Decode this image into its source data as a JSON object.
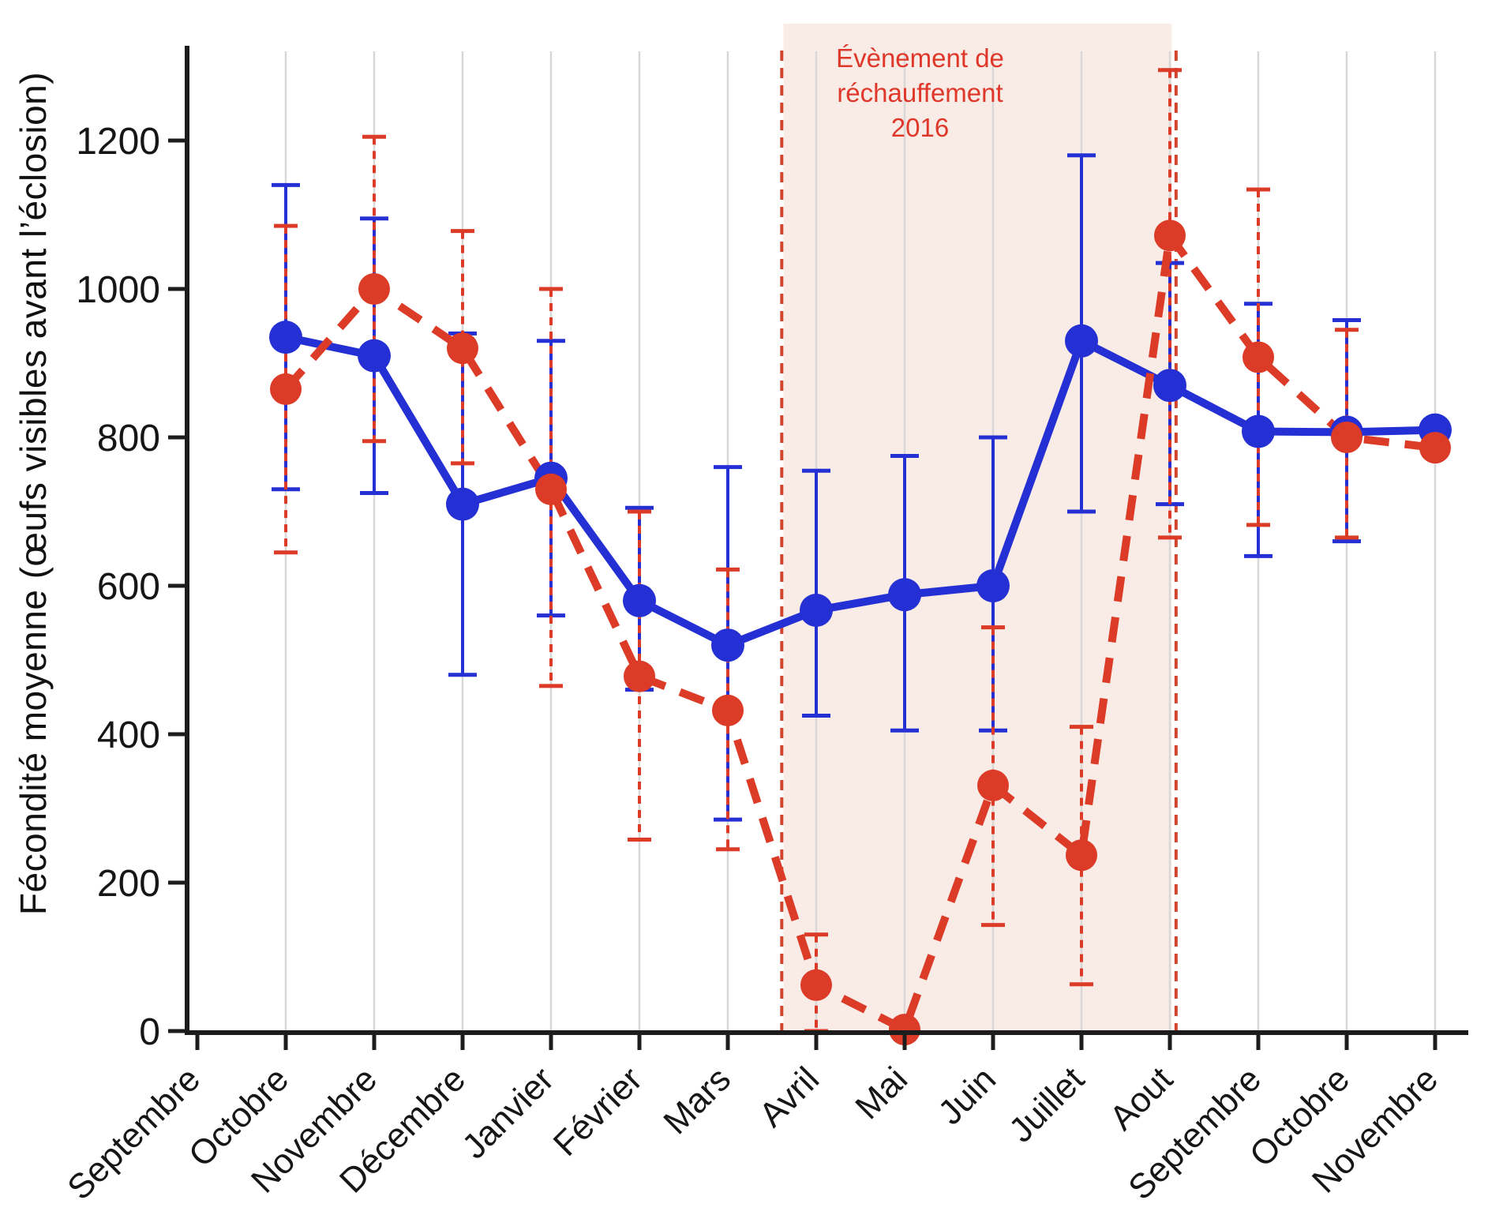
{
  "chart_data": {
    "type": "line",
    "title": "",
    "ylabel": "Fécondité moyenne (œufs visibles avant l’éclosion)",
    "xlabel": "",
    "ylim": [
      0,
      1330
    ],
    "y_ticks": [
      0,
      200,
      400,
      600,
      800,
      1000,
      1200
    ],
    "grid": "vertical-only",
    "legend": "none",
    "categories": [
      "Septembre",
      "Octobre",
      "Novembre",
      "Décembre",
      "Janvier",
      "Février",
      "Mars",
      "Avril",
      "Mai",
      "Juin",
      "Juillet",
      "Aout",
      "Septembre",
      "Octobre",
      "Novembre"
    ],
    "series": [
      {
        "name": "serie-bleue-annee-reference",
        "color": "#2430d4",
        "line_style": "solid",
        "marker": "circle",
        "values": [
          null,
          935,
          910,
          710,
          745,
          580,
          520,
          567,
          588,
          600,
          930,
          870,
          808,
          807,
          810
        ],
        "err_lo": [
          null,
          730,
          725,
          480,
          560,
          460,
          285,
          425,
          405,
          405,
          700,
          710,
          640,
          660,
          null
        ],
        "err_hi": [
          null,
          1140,
          1095,
          940,
          930,
          705,
          760,
          755,
          775,
          800,
          1180,
          1035,
          980,
          958,
          null
        ]
      },
      {
        "name": "serie-rouge-2016",
        "color": "#dc3b28",
        "line_style": "dashed",
        "marker": "circle",
        "values": [
          null,
          865,
          1000,
          920,
          730,
          478,
          432,
          62,
          2,
          331,
          237,
          1072,
          908,
          800,
          786
        ],
        "err_lo": [
          null,
          645,
          795,
          765,
          465,
          258,
          245,
          0,
          null,
          143,
          63,
          665,
          682,
          665,
          null
        ],
        "err_hi": [
          null,
          1085,
          1205,
          1078,
          1000,
          700,
          622,
          130,
          null,
          544,
          410,
          1295,
          1134,
          945,
          null
        ]
      }
    ],
    "warming_region": {
      "label_lines": [
        "Évènement de",
        "réchauffement",
        "2016"
      ],
      "label_color": "#df372a",
      "fill_color": "#f9ebe5",
      "boundary_color": "#d2442c",
      "shade_start_index": 6.63,
      "shade_end_index": 11.02,
      "boundary_left_index": 6.61,
      "boundary_right_index": 11.07
    }
  }
}
